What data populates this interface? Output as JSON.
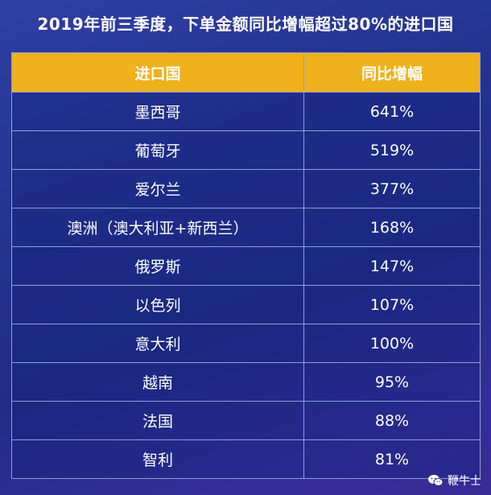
{
  "title": "2019年前三季度，下单金额同比增幅超过80%的进口国",
  "chart_data": {
    "type": "table",
    "columns": [
      "进口国",
      "同比增幅"
    ],
    "rows": [
      {
        "country": "墨西哥",
        "growth": "641%"
      },
      {
        "country": "葡萄牙",
        "growth": "519%"
      },
      {
        "country": "爱尔兰",
        "growth": "377%"
      },
      {
        "country": "澳洲（澳大利亚+新西兰）",
        "growth": "168%"
      },
      {
        "country": "俄罗斯",
        "growth": "147%"
      },
      {
        "country": "以色列",
        "growth": "107%"
      },
      {
        "country": "意大利",
        "growth": "100%"
      },
      {
        "country": "越南",
        "growth": "95%"
      },
      {
        "country": "法国",
        "growth": "88%"
      },
      {
        "country": "智利",
        "growth": "81%"
      }
    ]
  },
  "watermark": {
    "text": "鞭牛士",
    "icon": "wechat-icon"
  },
  "colors": {
    "header_bg": "#efb11c",
    "background": "#24338f",
    "text": "#ffffff"
  }
}
